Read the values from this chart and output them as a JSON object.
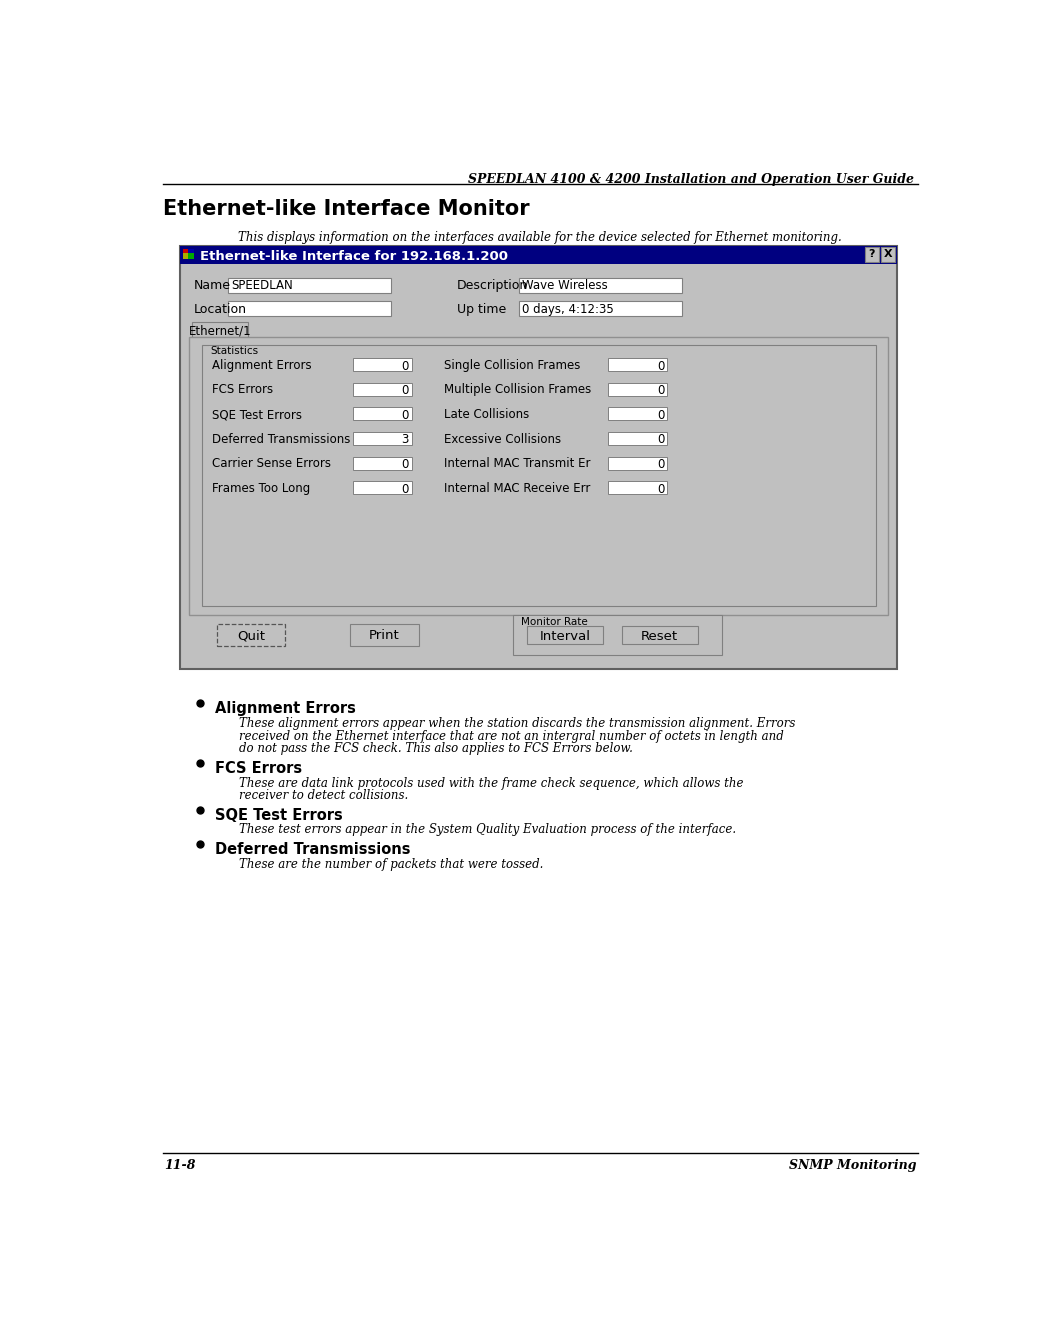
{
  "header_title": "SPEEDLAN 4100 & 4200 Installation and Operation User Guide",
  "footer_left": "11-8",
  "footer_right": "SNMP Monitoring",
  "section_title": "Ethernet-like Interface Monitor",
  "subtitle": "This displays information on the interfaces available for the device selected for Ethernet monitoring.",
  "dialog_title": "Ethernet-like Interface for 192.168.1.200",
  "dialog_bg": "#c0c0c0",
  "dialog_titlebar_bg": "#000080",
  "dialog_titlebar_fg": "#ffffff",
  "tab_label": "Ethernet/1",
  "stats_label": "Statistics",
  "left_fields": [
    "Alignment Errors",
    "FCS Errors",
    "SQE Test Errors",
    "Deferred Transmissions",
    "Carrier Sense Errors",
    "Frames Too Long"
  ],
  "left_values": [
    "0",
    "0",
    "0",
    "3",
    "0",
    "0"
  ],
  "right_fields": [
    "Single Collision Frames",
    "Multiple Collision Frames",
    "Late Collisions",
    "Excessive Collisions",
    "Internal MAC Transmit Er",
    "Internal MAC Receive Err"
  ],
  "right_values": [
    "0",
    "0",
    "0",
    "0",
    "0",
    "0"
  ],
  "btn_quit": "Quit",
  "btn_print": "Print",
  "monitor_rate_label": "Monitor Rate",
  "btn_interval": "Interval",
  "btn_reset": "Reset",
  "bullets": [
    {
      "title": "Alignment Errors",
      "body": [
        "These alignment errors appear when the station discards the transmission alignment. Errors",
        "received on the Ethernet interface that are not an intergral number of octets in length and",
        "do not pass the FCS check. This also applies to FCS Errors below."
      ]
    },
    {
      "title": "FCS Errors",
      "body": [
        "These are data link protocols used with the frame check sequence, which allows the",
        "receiver to detect collisions."
      ]
    },
    {
      "title": "SQE Test Errors",
      "body": [
        "These test errors appear in the System Quality Evaluation process of the interface."
      ]
    },
    {
      "title": "Deferred Transmissions",
      "body": [
        "These are the number of packets that were tossed."
      ]
    }
  ],
  "bg_color": "#ffffff"
}
